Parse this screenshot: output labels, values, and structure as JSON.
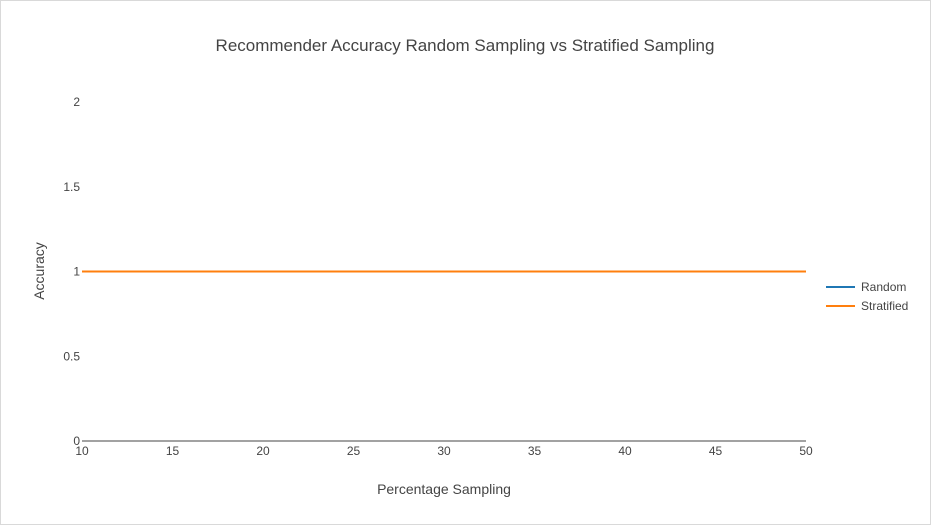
{
  "chart_data": {
    "type": "line",
    "title": "Recommender Accuracy Random Sampling vs Stratified Sampling",
    "xlabel": "Percentage Sampling",
    "ylabel": "Accuracy",
    "xlim": [
      10,
      50
    ],
    "ylim": [
      0,
      2
    ],
    "x_ticks": [
      10,
      15,
      20,
      25,
      30,
      35,
      40,
      45,
      50
    ],
    "y_ticks": [
      0,
      0.5,
      1,
      1.5,
      2
    ],
    "y_tick_labels": [
      "0",
      "0.5",
      "1",
      "1.5",
      "2"
    ],
    "grid": false,
    "legend_position": "right",
    "x": [
      10,
      20,
      30,
      40,
      50
    ],
    "series": [
      {
        "name": "Random",
        "color": "#1f77b4",
        "values": [
          1,
          1,
          1,
          1,
          1
        ]
      },
      {
        "name": "Stratified",
        "color": "#ff7f0e",
        "values": [
          1,
          1,
          1,
          1,
          1
        ]
      }
    ]
  }
}
